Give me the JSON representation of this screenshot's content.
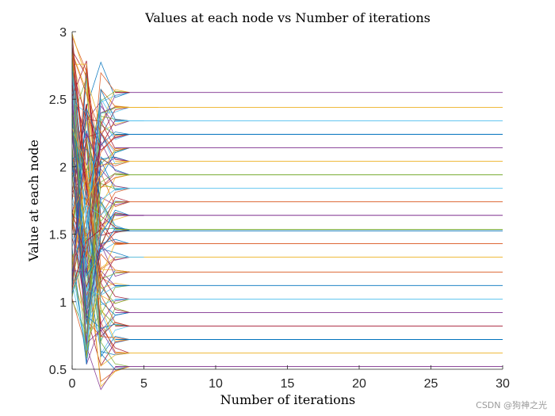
{
  "chart_data": {
    "type": "line",
    "title": "Values at each node vs Number of iterations",
    "xlabel": "Number of iterations",
    "ylabel": "Value at each node",
    "xlim": [
      0,
      30
    ],
    "ylim": [
      0.5,
      3
    ],
    "xticks": [
      0,
      5,
      10,
      15,
      20,
      25,
      30
    ],
    "xtick_labels": [
      "0",
      "5",
      "10",
      "15",
      "20",
      "25",
      "30"
    ],
    "yticks": [
      0.5,
      1,
      1.5,
      2,
      2.5,
      3
    ],
    "ytick_labels": [
      "0.5",
      "1",
      "1.5",
      "2",
      "2.5",
      "3"
    ],
    "palette": [
      "#0072BD",
      "#D95319",
      "#EDB120",
      "#7E2F8E",
      "#77AC30",
      "#4DBEEE",
      "#A2142F"
    ],
    "converged_levels": [
      {
        "value": 2.55,
        "end": 30,
        "color": "#7E2F8E"
      },
      {
        "value": 2.44,
        "end": 30,
        "color": "#EDB120"
      },
      {
        "value": 2.34,
        "end": 30,
        "color": "#4DBEEE"
      },
      {
        "value": 2.24,
        "end": 30,
        "color": "#0072BD"
      },
      {
        "value": 2.14,
        "end": 30,
        "color": "#7E2F8E"
      },
      {
        "value": 2.04,
        "end": 30,
        "color": "#EDB120"
      },
      {
        "value": 1.94,
        "end": 30,
        "color": "#77AC30"
      },
      {
        "value": 1.84,
        "end": 30,
        "color": "#4DBEEE"
      },
      {
        "value": 1.74,
        "end": 30,
        "color": "#D95319"
      },
      {
        "value": 1.64,
        "end": 30,
        "color": "#7E2F8E"
      },
      {
        "value": 1.535,
        "end": 30,
        "color": "#77AC30"
      },
      {
        "value": 1.525,
        "end": 30,
        "color": "#0072BD"
      },
      {
        "value": 1.43,
        "end": 30,
        "color": "#D95319"
      },
      {
        "value": 1.33,
        "end": 30,
        "color": "#EDB120"
      },
      {
        "value": 1.22,
        "end": 30,
        "color": "#D95319"
      },
      {
        "value": 1.12,
        "end": 30,
        "color": "#0072BD"
      },
      {
        "value": 1.02,
        "end": 30,
        "color": "#4DBEEE"
      },
      {
        "value": 0.92,
        "end": 30,
        "color": "#7E2F8E"
      },
      {
        "value": 0.82,
        "end": 30,
        "color": "#A2142F"
      },
      {
        "value": 0.72,
        "end": 30,
        "color": "#0072BD"
      },
      {
        "value": 0.62,
        "end": 30,
        "color": "#EDB120"
      },
      {
        "value": 0.52,
        "end": 30,
        "color": "#7E2F8E"
      }
    ],
    "short_series": [
      {
        "value": 2.44,
        "end": 6,
        "color": "#EDB120"
      },
      {
        "value": 2.34,
        "end": 5,
        "color": "#4DBEEE"
      },
      {
        "value": 1.64,
        "end": 5,
        "color": "#7E2F8E"
      },
      {
        "value": 1.33,
        "end": 5,
        "color": "#4DBEEE"
      },
      {
        "value": 2.55,
        "end": 4,
        "color": "#A2142F"
      },
      {
        "value": 1.12,
        "end": 4,
        "color": "#0072BD"
      }
    ],
    "transient_series_count": 120,
    "initial_range": [
      1.0,
      3.0
    ],
    "first_iteration_range": [
      0.53,
      2.82
    ]
  },
  "watermark": "CSDN @狗神之光"
}
